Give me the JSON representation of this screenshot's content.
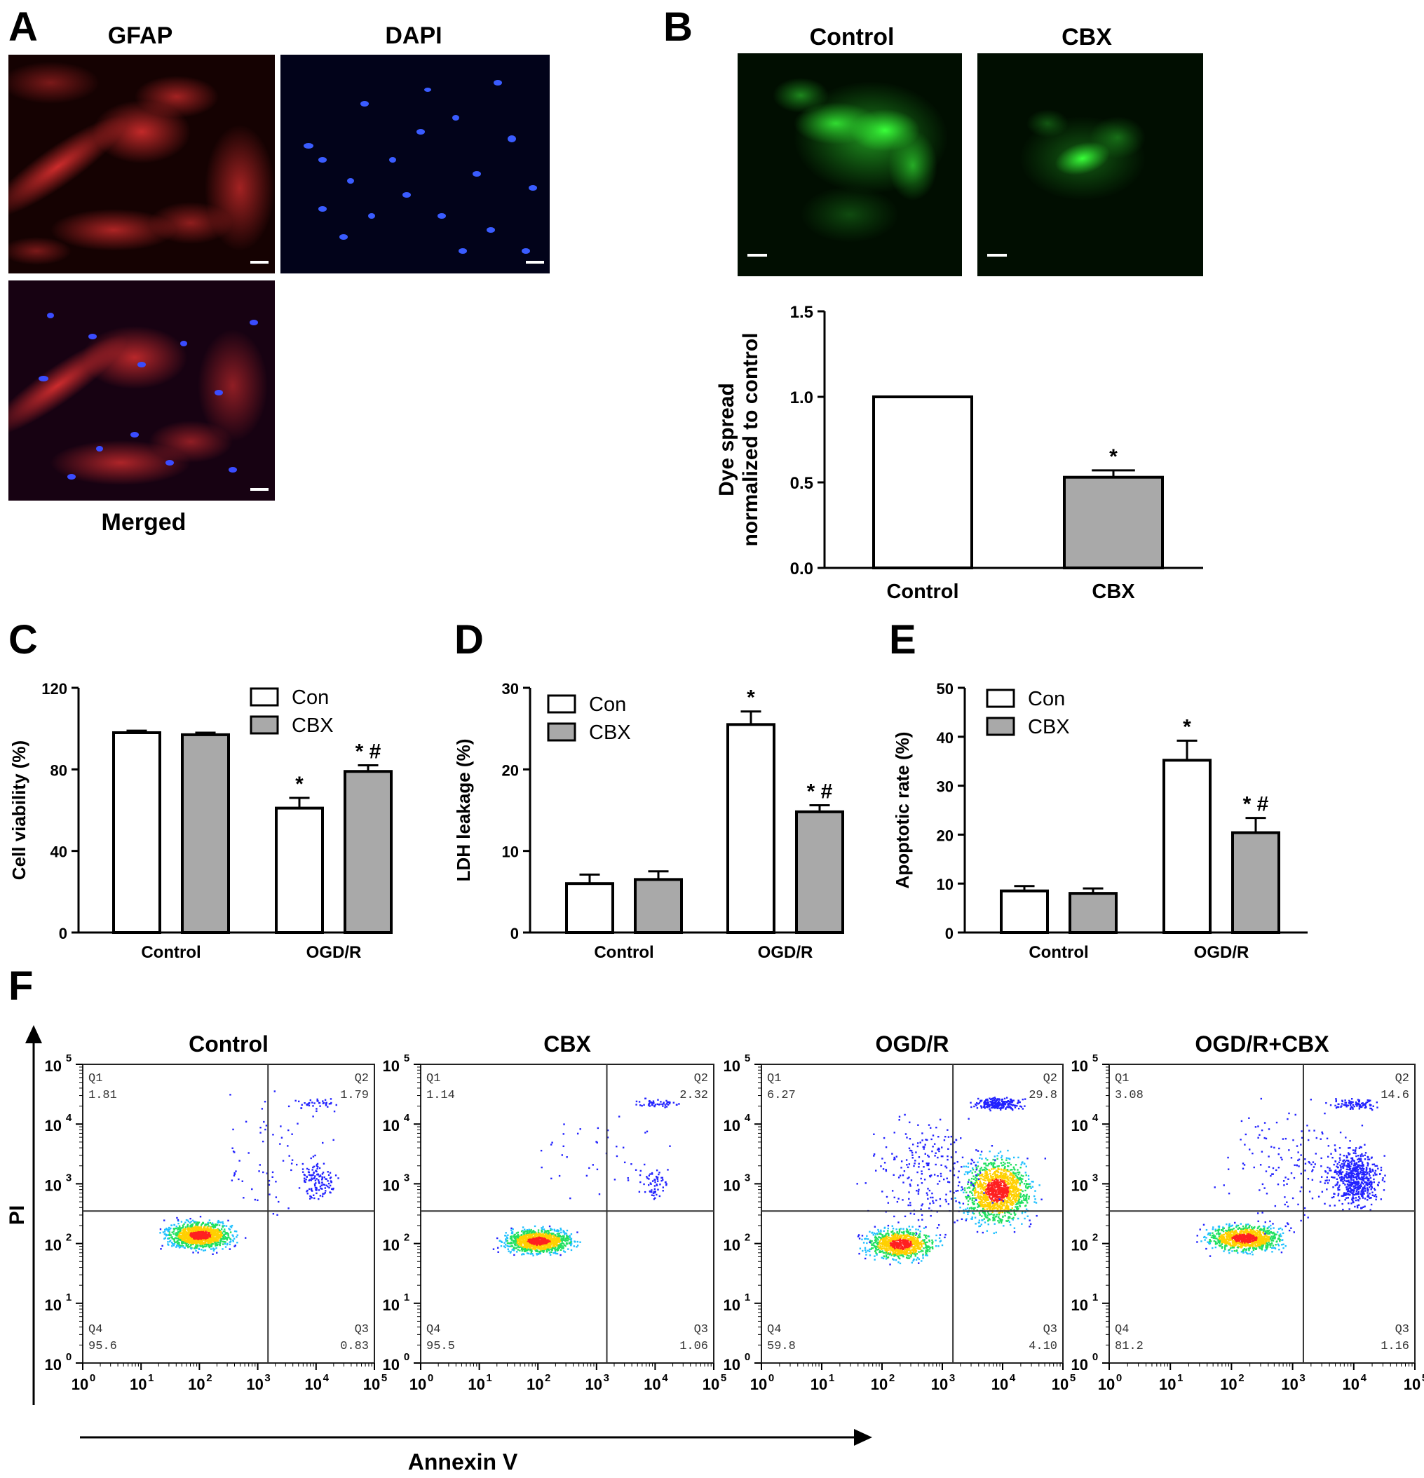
{
  "panels": {
    "A": {
      "letter": "A",
      "images": [
        {
          "title": "GFAP",
          "stain": "red"
        },
        {
          "title": "DAPI",
          "stain": "blue"
        },
        {
          "title": "Merged",
          "stain": "merged"
        }
      ]
    },
    "B": {
      "letter": "B",
      "images": [
        {
          "title": "Control",
          "stain": "green"
        },
        {
          "title": "CBX",
          "stain": "green-small"
        }
      ]
    },
    "C": {
      "letter": "C"
    },
    "D": {
      "letter": "D"
    },
    "E": {
      "letter": "E"
    },
    "F": {
      "letter": "F"
    }
  },
  "colors": {
    "gfap_red": "#d11f1f",
    "dapi_blue": "#2a4bff",
    "dye_green": "#22d62a",
    "con_bar": "#ffffff",
    "cbx_bar": "#a9a9a9",
    "flow_dot": "#2222ff"
  },
  "chart_data": [
    {
      "id": "B",
      "type": "bar",
      "categories": [
        "Control",
        "CBX"
      ],
      "values": [
        1.0,
        0.53
      ],
      "errors": [
        0,
        0.04
      ],
      "colors": [
        "#ffffff",
        "#a9a9a9"
      ],
      "annotations": [
        "",
        "*"
      ],
      "ylabel_lines": [
        "Dye spread",
        "normalized to control"
      ],
      "ylim": [
        0,
        1.5
      ],
      "yticks": [
        "0.0",
        "0.5",
        "1.0",
        "1.5"
      ]
    },
    {
      "id": "C",
      "type": "bar",
      "categories": [
        "Control",
        "OGD/R"
      ],
      "series": [
        {
          "name": "Con",
          "values": [
            98,
            61
          ],
          "errors": [
            1,
            5
          ],
          "annotations": [
            "",
            "*"
          ]
        },
        {
          "name": "CBX",
          "values": [
            97,
            79
          ],
          "errors": [
            1,
            3
          ],
          "annotations": [
            "",
            "* #"
          ]
        }
      ],
      "ylabel": "Cell viability (%)",
      "ylim": [
        0,
        120
      ],
      "yticks": [
        "0",
        "40",
        "80",
        "120"
      ],
      "legend": "top-right"
    },
    {
      "id": "D",
      "type": "bar",
      "categories": [
        "Control",
        "OGD/R"
      ],
      "series": [
        {
          "name": "Con",
          "values": [
            6.0,
            25.5
          ],
          "errors": [
            1.1,
            1.6
          ],
          "annotations": [
            "",
            "*"
          ]
        },
        {
          "name": "CBX",
          "values": [
            6.5,
            14.8
          ],
          "errors": [
            1.0,
            0.8
          ],
          "annotations": [
            "",
            "* #"
          ]
        }
      ],
      "ylabel": "LDH leakage (%)",
      "ylim": [
        0,
        30
      ],
      "yticks": [
        "0",
        "10",
        "20",
        "30"
      ],
      "legend": "top-left"
    },
    {
      "id": "E",
      "type": "bar",
      "categories": [
        "Control",
        "OGD/R"
      ],
      "series": [
        {
          "name": "Con",
          "values": [
            8.5,
            35.2
          ],
          "errors": [
            1.0,
            4.0
          ],
          "annotations": [
            "",
            "*"
          ]
        },
        {
          "name": "CBX",
          "values": [
            8.0,
            20.4
          ],
          "errors": [
            1.0,
            3.0
          ],
          "annotations": [
            "",
            "* #"
          ]
        }
      ],
      "ylabel": "Apoptotic rate (%)",
      "ylim": [
        0,
        50
      ],
      "yticks": [
        "0",
        "10",
        "20",
        "30",
        "40",
        "50"
      ],
      "legend": "top-left"
    },
    {
      "id": "F",
      "type": "scatter",
      "xlabel": "Annexin V",
      "ylabel": "PI",
      "scale": "log",
      "axis_range": [
        1,
        100000
      ],
      "gate_x": 1500,
      "gate_y": 350,
      "tick_base": "10",
      "tick_exponents": [
        "0",
        "1",
        "2",
        "3",
        "4",
        "5"
      ],
      "plots": [
        {
          "title": "Control",
          "quadrants": {
            "Q1": "1.81",
            "Q2": "1.79",
            "Q3": "0.83",
            "Q4": "95.6"
          }
        },
        {
          "title": "CBX",
          "quadrants": {
            "Q1": "1.14",
            "Q2": "2.32",
            "Q3": "1.06",
            "Q4": "95.5"
          }
        },
        {
          "title": "OGD/R",
          "quadrants": {
            "Q1": "6.27",
            "Q2": "29.8",
            "Q3": "4.10",
            "Q4": "59.8"
          }
        },
        {
          "title": "OGD/R+CBX",
          "quadrants": {
            "Q1": "3.08",
            "Q2": "14.6",
            "Q3": "1.16",
            "Q4": "81.2"
          }
        }
      ]
    }
  ]
}
